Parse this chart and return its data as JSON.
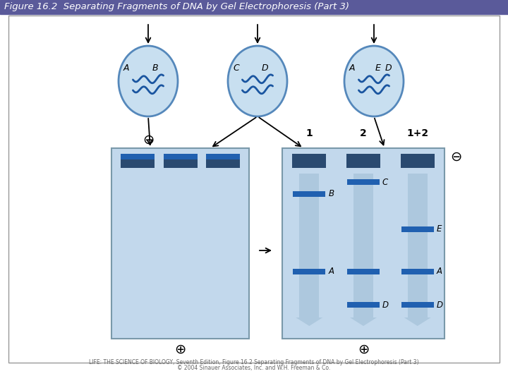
{
  "title": "Figure 16.2  Separating Fragments of DNA by Gel Electrophoresis (Part 3)",
  "title_bg": "#5a5a9a",
  "title_color": "white",
  "fig_bg": "white",
  "caption1": "LIFE: THE SCIENCE OF BIOLOGY, Seventh Edition, Figure 16.2 Separating Fragments of DNA by Gel Electrophoresis (Part 3)",
  "caption2": "© 2004 Sinauer Associates, Inc. and W.H. Freeman & Co.",
  "gel_light_blue": "#c2d8ec",
  "band_blue": "#2060b0",
  "band_dark": "#2a4a70",
  "ellipse_fill": "#c8dff0",
  "ellipse_edge": "#5588bb",
  "wave_color": "#1a55a0",
  "col_arrow_color": "#adc8de",
  "outer_edge": "#999999",
  "gel_edge": "#7a99aa",
  "minus_circle_color": "#555555",
  "plus_circle_color": "#555555"
}
